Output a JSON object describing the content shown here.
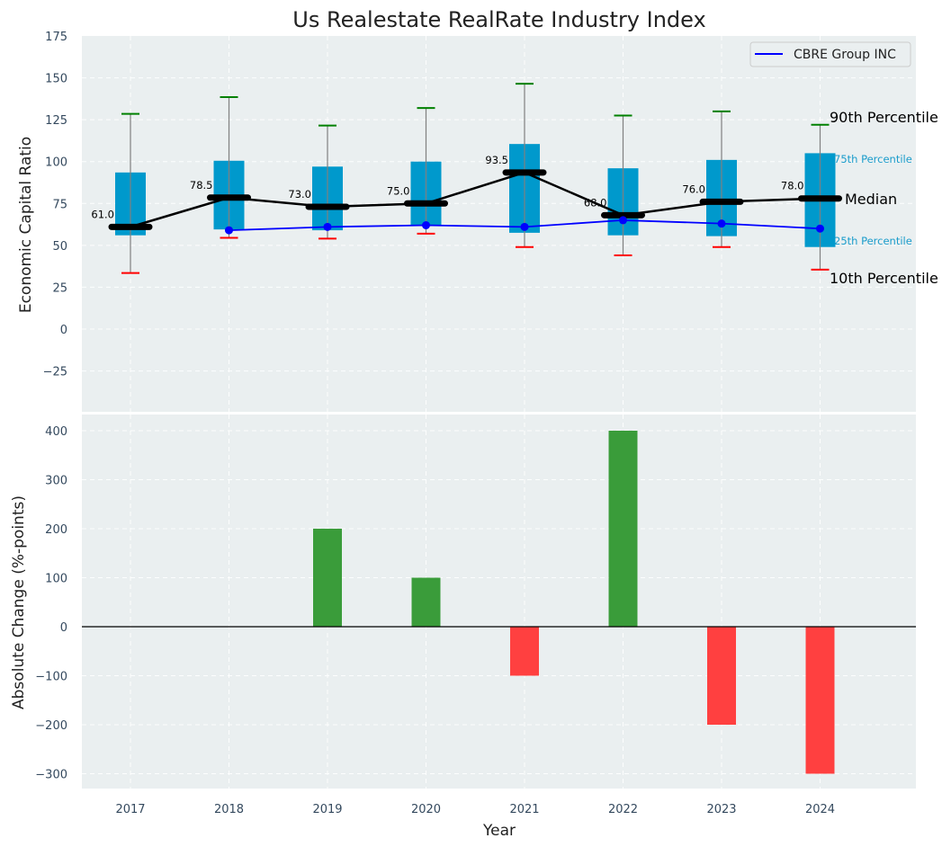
{
  "chart_data": [
    {
      "type": "box",
      "title": "Us Realestate RealRate Industry Index",
      "xlabel": "",
      "ylabel": "Economic Capital Ratio",
      "ylim": [
        -50,
        175
      ],
      "yticks": [
        -25,
        0,
        25,
        50,
        75,
        100,
        125,
        150,
        175
      ],
      "ytick_labels": [
        "−25",
        "0",
        "25",
        "50",
        "75",
        "100",
        "125",
        "150",
        "175"
      ],
      "grid": true,
      "categories": [
        "2017",
        "2018",
        "2019",
        "2020",
        "2021",
        "2022",
        "2023",
        "2024"
      ],
      "percentiles": {
        "p10": [
          33.5,
          54.5,
          54,
          57,
          49,
          44,
          49,
          35.5
        ],
        "p25": [
          56,
          59.5,
          59,
          61.5,
          57.5,
          56,
          55.5,
          49
        ],
        "median": [
          61.0,
          78.5,
          73.0,
          75.0,
          93.5,
          68.0,
          76.0,
          78.0
        ],
        "p75": [
          93.5,
          100.5,
          97,
          100,
          110.5,
          96,
          101,
          105
        ],
        "p90": [
          128.5,
          138.5,
          121.5,
          132,
          146.5,
          127.5,
          130,
          122
        ]
      },
      "median_labels": [
        "61.0",
        "78.5",
        "73.0",
        "75.0",
        "93.5",
        "68.0",
        "76.0",
        "78.0"
      ],
      "series": [
        {
          "name": "CBRE Group INC",
          "color": "#0000ff",
          "x": [
            "2018",
            "2019",
            "2020",
            "2021",
            "2022",
            "2023",
            "2024"
          ],
          "values": [
            59,
            61,
            62,
            61,
            65,
            63,
            60
          ]
        }
      ],
      "legend": {
        "entries": [
          "CBRE Group INC"
        ],
        "placement": "top-right"
      },
      "annotations": {
        "p90": "90th Percentile",
        "p75": "75th Percentile",
        "median": "Median",
        "p25": "25th Percentile",
        "p10": "10th Percentile"
      },
      "colors": {
        "box": "#0099cc",
        "median": "#000000",
        "whisker_top": "#008000",
        "whisker_bottom": "#ff0000",
        "whisker_line": "#808080",
        "panel_bg": "#eaeff0"
      }
    },
    {
      "type": "bar",
      "xlabel": "Year",
      "ylabel": "Absolute Change (%-points)",
      "ylim": [
        -330,
        440
      ],
      "yticks": [
        -300,
        -200,
        -100,
        0,
        100,
        200,
        300,
        400
      ],
      "ytick_labels": [
        "−300",
        "−200",
        "−100",
        "0",
        "100",
        "200",
        "300",
        "400"
      ],
      "grid": true,
      "categories": [
        "2017",
        "2018",
        "2019",
        "2020",
        "2021",
        "2022",
        "2023",
        "2024"
      ],
      "values": [
        0,
        0,
        200,
        100,
        -100,
        400,
        -200,
        -300
      ],
      "colors": {
        "positive": "#3a9c3a",
        "negative": "#ff4040",
        "zero_line": "#000000"
      }
    }
  ]
}
